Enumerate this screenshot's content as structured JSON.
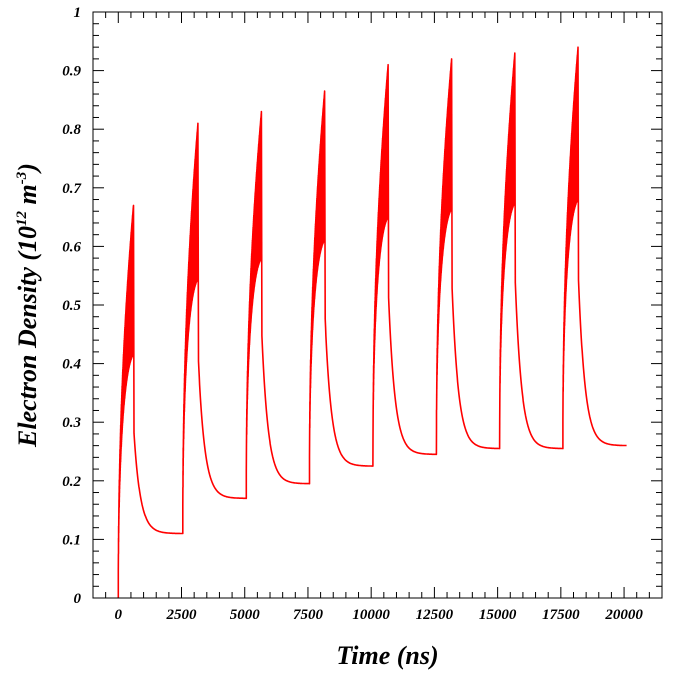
{
  "chart_data": {
    "type": "line",
    "title": "",
    "xlabel": "Time (ns)",
    "ylabel": "Electron Density (10^12 m^-3)",
    "ylabel_parts": {
      "prefix": "Electron Density (10",
      "exp1": "12",
      "mid": " m",
      "exp2": "-3",
      "suffix": ")"
    },
    "xlim": [
      -1000,
      21500
    ],
    "ylim": [
      0,
      1
    ],
    "x_ticks": [
      0,
      2500,
      5000,
      7500,
      10000,
      12500,
      15000,
      17500,
      20000
    ],
    "x_tick_labels": [
      "0",
      "2500",
      "5000",
      "7500",
      "10000",
      "12500",
      "15000",
      "17500",
      "20000"
    ],
    "y_ticks": [
      0,
      0.1,
      0.2,
      0.3,
      0.4,
      0.5,
      0.6,
      0.7,
      0.8,
      0.9,
      1
    ],
    "y_tick_labels": [
      "0",
      "0.1",
      "0.2",
      "0.3",
      "0.4",
      "0.5",
      "0.6",
      "0.7",
      "0.8",
      "0.9",
      "1"
    ],
    "grid": false,
    "series_color": "#ff0000",
    "pulses": [
      {
        "start": 0,
        "end": 600,
        "base": 0.0,
        "peak": 0.67,
        "decay_end": 2550,
        "floor": 0.11
      },
      {
        "start": 2550,
        "end": 3150,
        "base": 0.11,
        "peak": 0.81,
        "decay_end": 5060,
        "floor": 0.17
      },
      {
        "start": 5060,
        "end": 5660,
        "base": 0.17,
        "peak": 0.83,
        "decay_end": 7560,
        "floor": 0.195
      },
      {
        "start": 7560,
        "end": 8160,
        "base": 0.195,
        "peak": 0.865,
        "decay_end": 10070,
        "floor": 0.225
      },
      {
        "start": 10070,
        "end": 10670,
        "base": 0.225,
        "peak": 0.91,
        "decay_end": 12580,
        "floor": 0.245
      },
      {
        "start": 12580,
        "end": 13180,
        "base": 0.245,
        "peak": 0.92,
        "decay_end": 15080,
        "floor": 0.255
      },
      {
        "start": 15080,
        "end": 15680,
        "base": 0.255,
        "peak": 0.93,
        "decay_end": 17580,
        "floor": 0.255
      },
      {
        "start": 17580,
        "end": 18180,
        "base": 0.255,
        "peak": 0.94,
        "decay_end": 20100,
        "floor": 0.26
      }
    ]
  }
}
